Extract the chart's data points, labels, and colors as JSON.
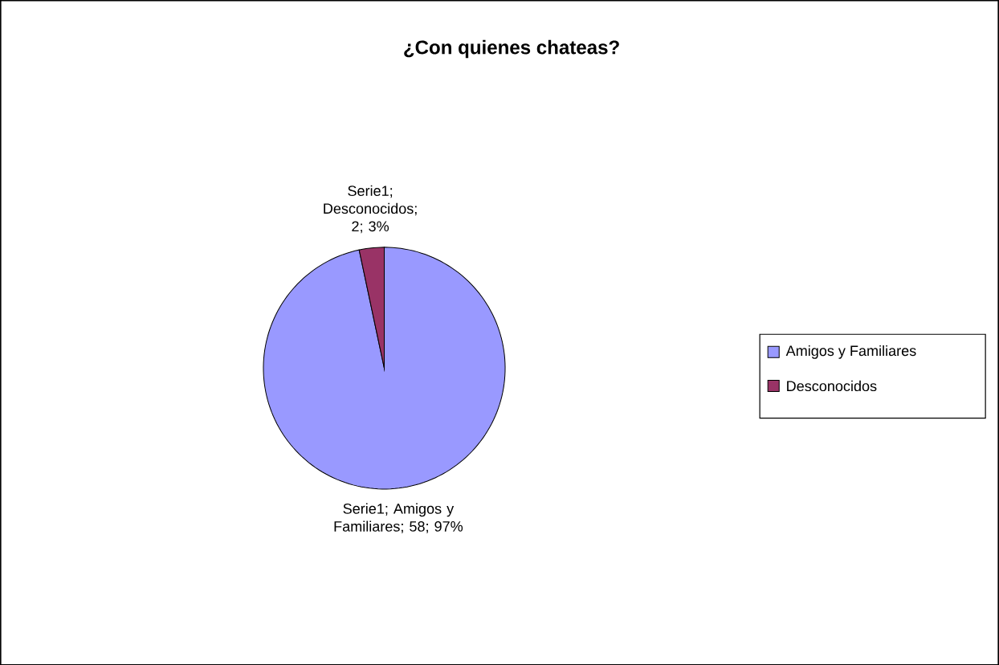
{
  "chart_data": {
    "type": "pie",
    "title": "¿Con quienes chateas?",
    "categories": [
      "Amigos y Familiares",
      "Desconocidos"
    ],
    "values": [
      58,
      2
    ],
    "colors": [
      "#9999ff",
      "#993366"
    ],
    "value_labels": [
      "Serie1; Amigos y Familiares; 58; 97%",
      "Serie1; Desconocidos; 2; 3%"
    ],
    "legend": "right"
  }
}
